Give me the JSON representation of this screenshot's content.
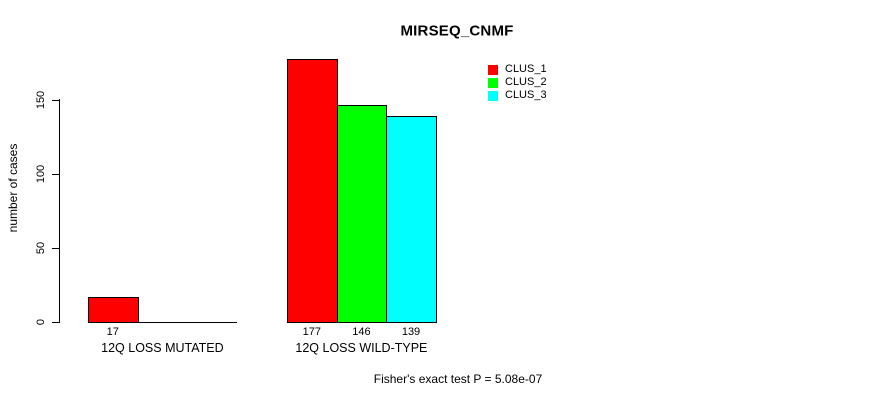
{
  "page": {
    "background": "#FFFFFF",
    "text_color": "#000000"
  },
  "chart_data": {
    "type": "bar",
    "title": "MIRSEQ_CNMF",
    "xlabel": "",
    "ylabel": "number of cases",
    "categories": [
      "12Q LOSS MUTATED",
      "12Q LOSS WILD-TYPE"
    ],
    "series": [
      {
        "name": "CLUS_1",
        "color": "#FF0000",
        "values": [
          17,
          177
        ]
      },
      {
        "name": "CLUS_2",
        "color": "#00FF00",
        "values": [
          0,
          146
        ]
      },
      {
        "name": "CLUS_3",
        "color": "#00FFFF",
        "values": [
          0,
          139
        ]
      }
    ],
    "bar_value_labels": [
      [
        "17",
        "",
        ""
      ],
      [
        "177",
        "146",
        "139"
      ]
    ],
    "y_ticks": [
      0,
      50,
      100,
      150
    ],
    "ylim": [
      0,
      150
    ],
    "grid": false,
    "legend_position": "top-right",
    "bar_border_color": "#000000",
    "axis_color": "#000000",
    "annotation": "Fisher's exact test P = 5.08e-07"
  }
}
